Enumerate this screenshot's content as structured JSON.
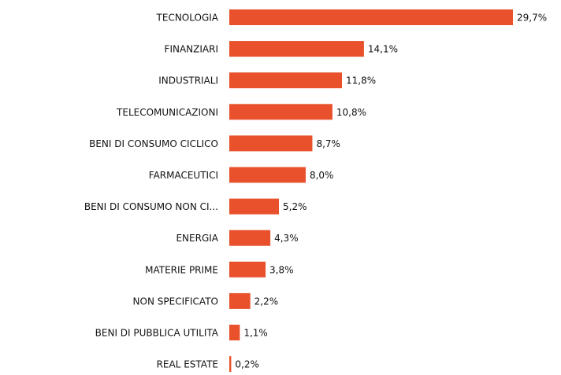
{
  "chart_data": {
    "type": "bar",
    "orientation": "horizontal",
    "color": "#e8512b",
    "categories": [
      "TECNOLOGIA",
      "FINANZIARI",
      "INDUSTRIALI",
      "TELECOMUNICAZIONI",
      "BENI DI CONSUMO CICLICO",
      "FARMACEUTICI",
      "BENI DI CONSUMO NON CI...",
      "ENERGIA",
      "MATERIE PRIME",
      "NON SPECIFICATO",
      "BENI DI PUBBLICA UTILITA",
      "REAL ESTATE"
    ],
    "values": [
      29.7,
      14.1,
      11.8,
      10.8,
      8.7,
      8.0,
      5.2,
      4.3,
      3.8,
      2.2,
      1.1,
      0.2
    ],
    "value_labels": [
      "29,7%",
      "14,1%",
      "11,8%",
      "10,8%",
      "8,7%",
      "8,0%",
      "5,2%",
      "4,3%",
      "3,8%",
      "2,2%",
      "1,1%",
      "0,2%"
    ]
  }
}
